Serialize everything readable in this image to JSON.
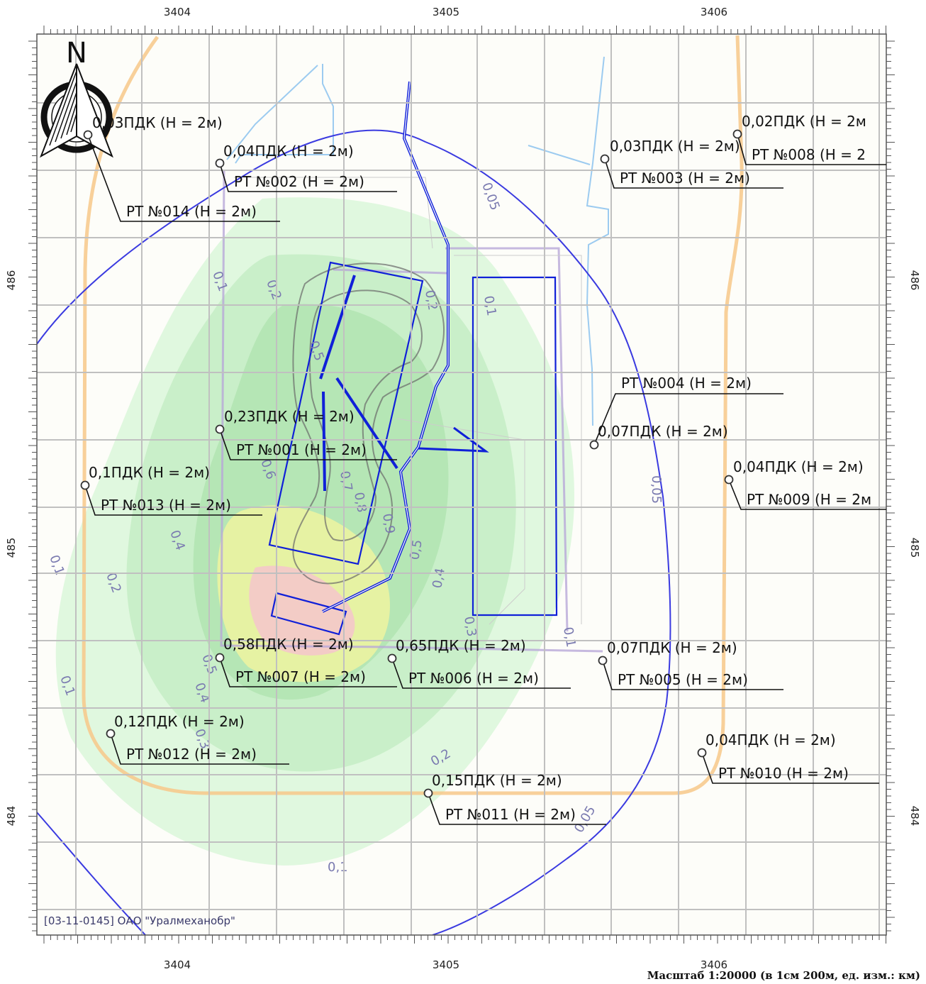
{
  "axes": {
    "x_ticks": [
      "3404",
      "3405",
      "3406"
    ],
    "y_ticks": [
      "486",
      "485",
      "484"
    ]
  },
  "north_arrow": {
    "label": "N",
    "icon": "north-arrow-icon"
  },
  "points": [
    {
      "id": "РТ №014 (Н = 2м)",
      "value": "0,03ПДК (Н = 2м)"
    },
    {
      "id": "РТ №002 (Н = 2м)",
      "value": "0,04ПДК (Н = 2м)"
    },
    {
      "id": "РТ №003 (Н = 2м)",
      "value": "0,03ПДК (Н = 2м)"
    },
    {
      "id": "РТ №008 (Н = 2",
      "value": "0,02ПДК (Н = 2м"
    },
    {
      "id": "РТ №004 (Н = 2м)",
      "value": "0,07ПДК (Н = 2м)"
    },
    {
      "id": "РТ №001 (Н = 2м)",
      "value": "0,23ПДК (Н = 2м)"
    },
    {
      "id": "РТ №009 (Н = 2м",
      "value": "0,04ПДК (Н = 2м)"
    },
    {
      "id": "РТ №013 (Н = 2м)",
      "value": "0,1ПДК (Н = 2м)"
    },
    {
      "id": "РТ №007 (Н = 2м)",
      "value": "0,58ПДК (Н = 2м)"
    },
    {
      "id": "РТ №006 (Н = 2м)",
      "value": "0,65ПДК (Н = 2м)"
    },
    {
      "id": "РТ №005 (Н = 2м)",
      "value": "0,07ПДК (Н = 2м)"
    },
    {
      "id": "РТ №012 (Н = 2м)",
      "value": "0,12ПДК (Н = 2м)"
    },
    {
      "id": "РТ №010 (Н = 2м)",
      "value": "0,04ПДК (Н = 2м)"
    },
    {
      "id": "РТ №011 (Н = 2м)",
      "value": "0,15ПДК (Н = 2м)"
    }
  ],
  "contour_labels": [
    "0,05",
    "0,1",
    "0,2",
    "0,3",
    "0,4",
    "0,5",
    "0,6",
    "0,7",
    "0,8",
    "0,9"
  ],
  "watermark": "[03-11-0145] ОАО \"Уралмеханобр\"",
  "scale": "Масштаб 1:20000 (в 1см 200м, ед. изм.: км)",
  "colors": {
    "boundary_blue": "#3a3ae0",
    "source_blue": "#1020d8",
    "road_orange": "#f7c88a",
    "water_lightblue": "#9ccbf0",
    "zone_green": "#c8f0c8",
    "zone_yellow": "#f7f2a8",
    "zone_pink": "#f3c8cc"
  }
}
